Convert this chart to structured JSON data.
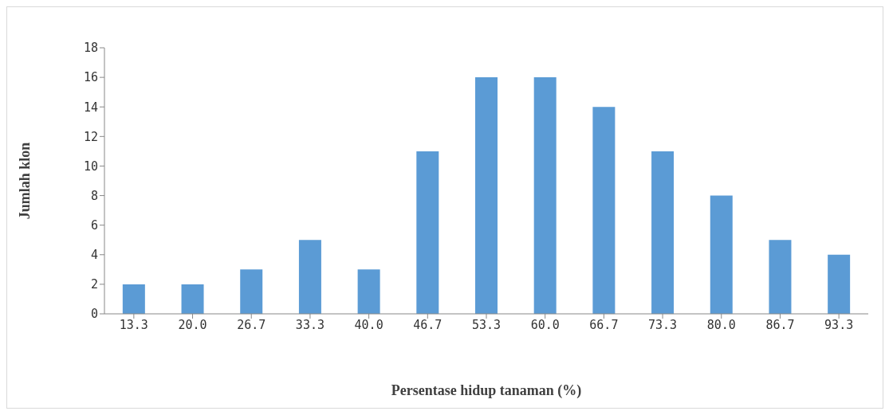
{
  "chart_data": {
    "type": "bar",
    "xlabel": "Persentase hidup tanaman (%)",
    "ylabel": "Jumlah klon",
    "categories": [
      "13.3",
      "20.0",
      "26.7",
      "33.3",
      "40.0",
      "46.7",
      "53.3",
      "60.0",
      "66.7",
      "73.3",
      "80.0",
      "86.7",
      "93.3"
    ],
    "values": [
      2,
      2,
      3,
      5,
      3,
      11,
      16,
      16,
      14,
      11,
      8,
      5,
      4
    ],
    "color": "#5b9bd5",
    "ylim": [
      0,
      18
    ],
    "yticks": [
      0,
      2,
      4,
      6,
      8,
      10,
      12,
      14,
      16,
      18
    ],
    "grid": false,
    "legend": false
  }
}
